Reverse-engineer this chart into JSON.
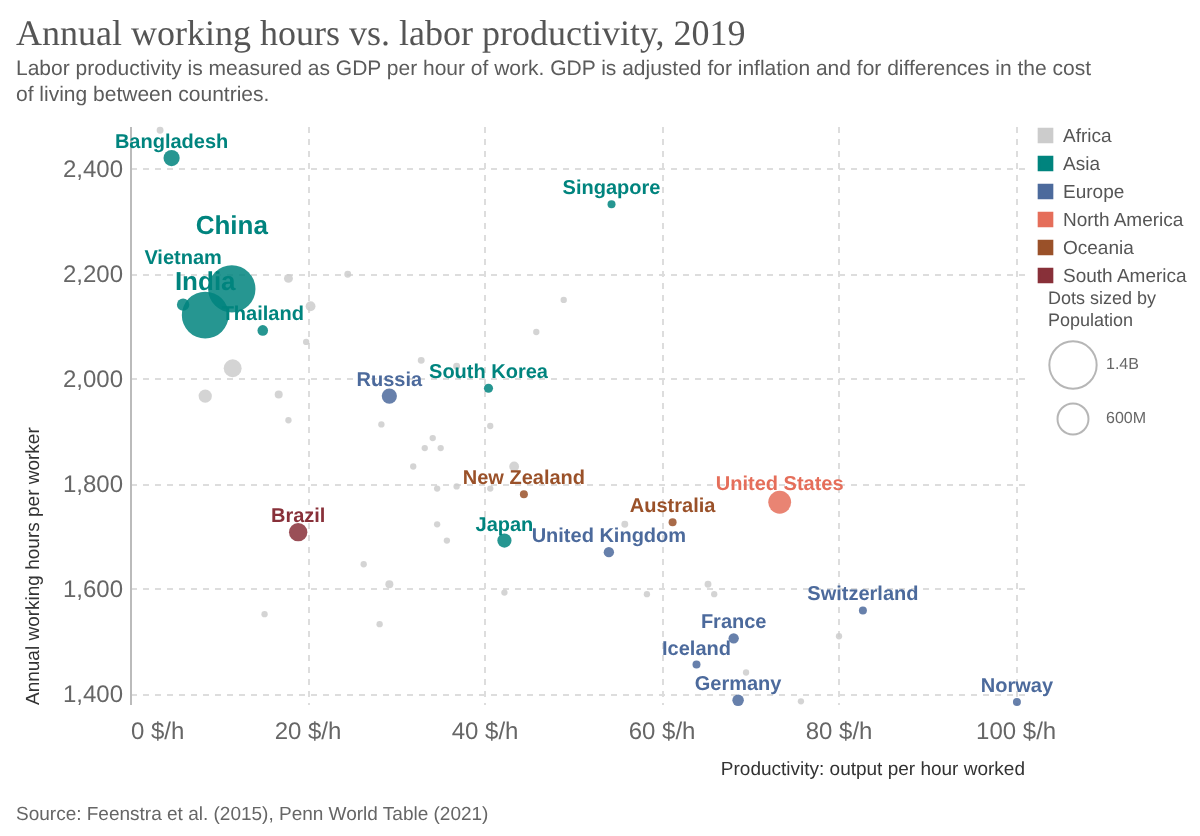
{
  "chart_data": {
    "type": "bubble",
    "title": "Annual working hours vs. labor productivity, 2019",
    "subtitle": "Labor productivity is measured as GDP per hour of work. GDP is adjusted for inflation and for differences in the cost of living between countries.",
    "xlabel": "Productivity: output per hour worked",
    "ylabel": "Annual working hours per worker",
    "legend_title": "Dots sized by Population",
    "xlim": [
      0,
      101
    ],
    "ylim": [
      1380,
      2480
    ],
    "xticks": [
      {
        "value": 0,
        "label": "0 $/h"
      },
      {
        "value": 20,
        "label": "20 $/h"
      },
      {
        "value": 40,
        "label": "40 $/h"
      },
      {
        "value": 60,
        "label": "60 $/h"
      },
      {
        "value": 80,
        "label": "80 $/h"
      },
      {
        "value": 100,
        "label": "100 $/h"
      }
    ],
    "yticks": [
      {
        "value": 1400,
        "label": "1,400"
      },
      {
        "value": 1600,
        "label": "1,600"
      },
      {
        "value": 1800,
        "label": "1,800"
      },
      {
        "value": 2000,
        "label": "2,000"
      },
      {
        "value": 2200,
        "label": "2,200"
      },
      {
        "value": 2400,
        "label": "2,400"
      }
    ],
    "size_legend": [
      {
        "value": 1400,
        "label": "1.4B"
      },
      {
        "value": 600,
        "label": "600M"
      }
    ],
    "grid": true,
    "legend": "right",
    "series": [
      {
        "name": "Africa",
        "color": "#cccccc",
        "x": [
          3.4,
          17.9,
          24.6,
          20.4,
          19.9,
          11.6,
          8.5,
          16.8,
          17.9,
          28.4,
          32.9,
          36.9,
          45.9,
          49,
          40.7,
          34.2,
          33.3,
          35.1,
          32,
          43.4,
          34.7,
          36.9,
          40.7,
          34.7,
          35.8,
          26.4,
          29.3,
          15.2,
          28.2,
          42.3,
          55.9,
          65.3,
          66,
          58.4,
          80.1,
          75.8,
          69.6
        ],
        "values": [
          2472,
          2190,
          2198,
          2137,
          2069,
          2019,
          1966,
          1969,
          1920,
          1912,
          2034,
          2023,
          2088,
          2149,
          1909,
          1886,
          1867,
          1867,
          1832,
          1832,
          1790,
          1794,
          1790,
          1722,
          1691,
          1646,
          1608,
          1551,
          1532,
          1592,
          1722,
          1608,
          1589,
          1589,
          1509,
          1385,
          1440
        ],
        "sizes": [
          30,
          50,
          30,
          60,
          25,
          200,
          110,
          40,
          25,
          25,
          30,
          30,
          25,
          25,
          25,
          25,
          25,
          25,
          25,
          60,
          25,
          25,
          25,
          25,
          25,
          25,
          40,
          25,
          25,
          25,
          30,
          30,
          25,
          25,
          25,
          25,
          25
        ]
      },
      {
        "name": "Asia",
        "color": "#00847e",
        "x": [
          4.7,
          11.5,
          8.5,
          6,
          15,
          54.4,
          40.5,
          42.3
        ],
        "values": [
          2419,
          2170,
          2120,
          2140,
          2091,
          2331,
          1981,
          1691
        ],
        "sizes": [
          163,
          1400,
          1370,
          96,
          70,
          40,
          52,
          126
        ]
      },
      {
        "name": "Europe",
        "color": "#4c6a9c",
        "x": [
          29.3,
          54.1,
          82.8,
          68.2,
          64,
          68.7,
          100.2
        ],
        "values": [
          1966,
          1669,
          1558,
          1505,
          1455,
          1387,
          1384
        ],
        "sizes": [
          145,
          67,
          40,
          67,
          40,
          83,
          40
        ]
      },
      {
        "name": "North America",
        "color": "#e56e5a",
        "x": [
          73.4
        ],
        "values": [
          1764
        ],
        "sizes": [
          328
        ]
      },
      {
        "name": "Oceania",
        "color": "#9a5129",
        "x": [
          44.5,
          61.3
        ],
        "values": [
          1779,
          1726
        ],
        "sizes": [
          40,
          40
        ]
      },
      {
        "name": "South America",
        "color": "#883039",
        "x": [
          19
        ],
        "values": [
          1707
        ],
        "sizes": [
          211
        ]
      }
    ],
    "annotations": [
      {
        "text": "Bangladesh",
        "x": 4.7,
        "y": 2419
      },
      {
        "text": "China",
        "x": 11.5,
        "y": 2170
      },
      {
        "text": "India",
        "x": 8.5,
        "y": 2120
      },
      {
        "text": "Vietnam",
        "x": 6,
        "y": 2140
      },
      {
        "text": "Thailand",
        "x": 15,
        "y": 2091
      },
      {
        "text": "Singapore",
        "x": 54.4,
        "y": 2331
      },
      {
        "text": "Russia",
        "x": 29.3,
        "y": 1966
      },
      {
        "text": "South Korea",
        "x": 40.5,
        "y": 1981
      },
      {
        "text": "New Zealand",
        "x": 44.5,
        "y": 1779
      },
      {
        "text": "Brazil",
        "x": 19,
        "y": 1707
      },
      {
        "text": "Japan",
        "x": 42.3,
        "y": 1691
      },
      {
        "text": "Australia",
        "x": 61.3,
        "y": 1726
      },
      {
        "text": "United States",
        "x": 73.4,
        "y": 1764
      },
      {
        "text": "United Kingdom",
        "x": 54.1,
        "y": 1669
      },
      {
        "text": "Switzerland",
        "x": 82.8,
        "y": 1558
      },
      {
        "text": "France",
        "x": 68.2,
        "y": 1505
      },
      {
        "text": "Iceland",
        "x": 64,
        "y": 1455
      },
      {
        "text": "Germany",
        "x": 68.7,
        "y": 1387
      },
      {
        "text": "Norway",
        "x": 100.2,
        "y": 1384
      },
      "Source: Feenstra et al. (2015), Penn World Table (2021)"
    ]
  }
}
